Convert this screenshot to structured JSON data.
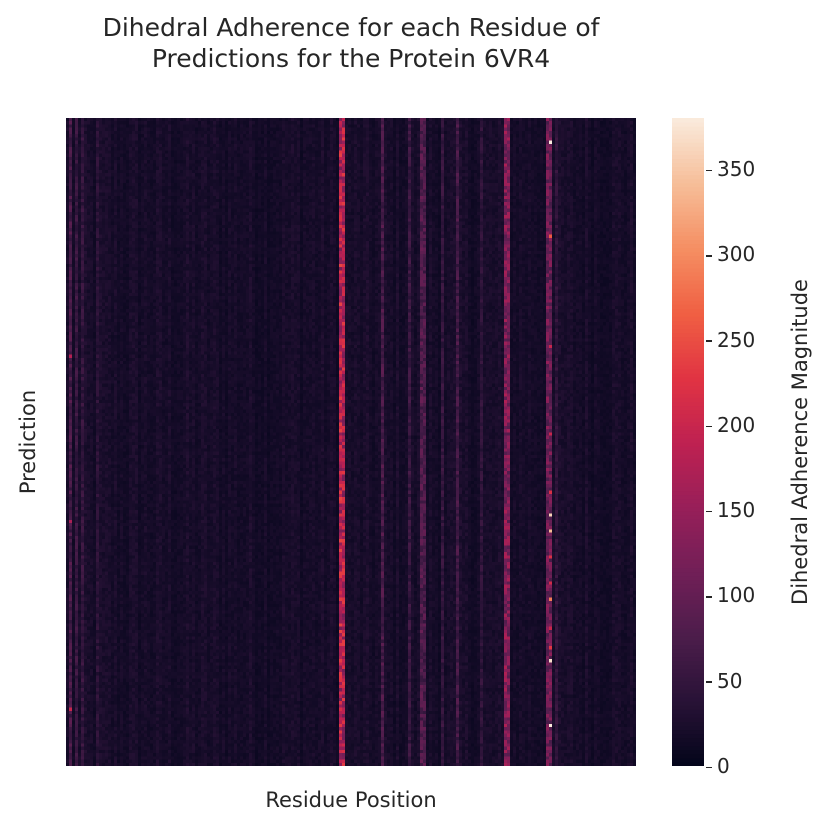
{
  "chart_data": {
    "type": "heatmap",
    "title_line1": "Dihedral Adherence for each Residue of",
    "title_line2": "Predictions for the Protein 6VR4",
    "xlabel": "Residue Position",
    "ylabel": "Prediction",
    "colorbar_label": "Dihedral Adherence Magnitude",
    "vmin": 0,
    "vmax": 380,
    "colorbar_ticks": [
      "0",
      "50",
      "100",
      "150",
      "200",
      "250",
      "300",
      "350"
    ],
    "colormap": "rocket",
    "n_residues": 190,
    "n_predictions": 200,
    "baseline_value": 20,
    "high_columns": [
      {
        "residue": 91,
        "value": 180
      },
      {
        "residue": 92,
        "value": 175
      },
      {
        "residue": 146,
        "value": 130
      },
      {
        "residue": 147,
        "value": 125
      },
      {
        "residue": 160,
        "value": 110
      },
      {
        "residue": 161,
        "value": 105
      },
      {
        "residue": 118,
        "value": 80
      },
      {
        "residue": 119,
        "value": 75
      },
      {
        "residue": 105,
        "value": 70
      },
      {
        "residue": 130,
        "value": 65
      },
      {
        "residue": 114,
        "value": 55
      },
      {
        "residue": 1,
        "value": 70
      },
      {
        "residue": 3,
        "value": 55
      },
      {
        "residue": 125,
        "value": 50
      },
      {
        "residue": 138,
        "value": 45
      },
      {
        "residue": 163,
        "value": 45
      },
      {
        "residue": 10,
        "value": 40
      },
      {
        "residue": 5,
        "value": 50
      }
    ],
    "hot_cells": [
      {
        "residue": 161,
        "prediction": 7,
        "value": 380
      },
      {
        "residue": 161,
        "prediction": 36,
        "value": 260
      },
      {
        "residue": 161,
        "prediction": 70,
        "value": 200
      },
      {
        "residue": 161,
        "prediction": 97,
        "value": 200
      },
      {
        "residue": 161,
        "prediction": 115,
        "value": 220
      },
      {
        "residue": 161,
        "prediction": 122,
        "value": 360
      },
      {
        "residue": 161,
        "prediction": 127,
        "value": 340
      },
      {
        "residue": 161,
        "prediction": 135,
        "value": 220
      },
      {
        "residue": 161,
        "prediction": 143,
        "value": 210
      },
      {
        "residue": 161,
        "prediction": 148,
        "value": 290
      },
      {
        "residue": 161,
        "prediction": 157,
        "value": 200
      },
      {
        "residue": 161,
        "prediction": 163,
        "value": 230
      },
      {
        "residue": 161,
        "prediction": 167,
        "value": 370
      },
      {
        "residue": 161,
        "prediction": 187,
        "value": 380
      },
      {
        "residue": 91,
        "prediction": 31,
        "value": 220
      },
      {
        "residue": 91,
        "prediction": 69,
        "value": 210
      },
      {
        "residue": 91,
        "prediction": 162,
        "value": 230
      },
      {
        "residue": 91,
        "prediction": 180,
        "value": 220
      },
      {
        "residue": 1,
        "prediction": 73,
        "value": 180
      },
      {
        "residue": 1,
        "prediction": 124,
        "value": 170
      },
      {
        "residue": 1,
        "prediction": 182,
        "value": 200
      }
    ]
  }
}
